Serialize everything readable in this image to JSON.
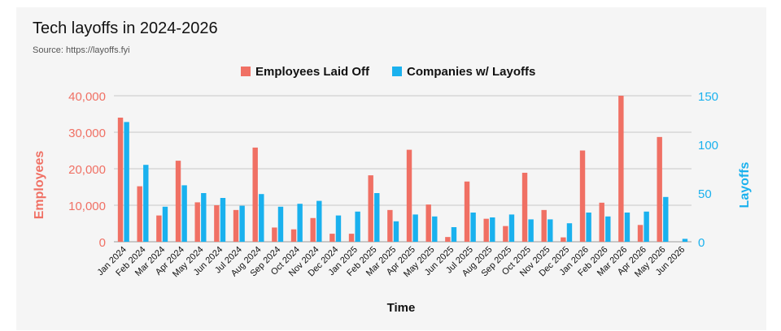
{
  "header": {
    "title": "Tech layoffs in 2024-2026",
    "source": "Source: https://layoffs.fyi"
  },
  "colors": {
    "employees": "#f07064",
    "companies": "#1ab1ee",
    "grid": "#c8c8c8",
    "background": "#f5f5f5"
  },
  "chart_data": {
    "type": "bar",
    "xlabel": "Time",
    "ylabel_left": "Employees",
    "ylabel_right": "Layoffs",
    "ylim_left": [
      0,
      40000
    ],
    "ylim_right": [
      0,
      150
    ],
    "yticks_left": [
      "0",
      "10,000",
      "20,000",
      "30,000",
      "40,000"
    ],
    "yticks_right": [
      "0",
      "50",
      "100",
      "150"
    ],
    "grid": true,
    "legend_position": "top-center",
    "categories": [
      "Jan 2024",
      "Feb 2024",
      "Mar 2024",
      "Apr 2024",
      "May 2024",
      "Jun 2024",
      "Jul 2024",
      "Aug 2024",
      "Sep 2024",
      "Oct 2024",
      "Nov 2024",
      "Dec 2024",
      "Jan 2025",
      "Feb 2025",
      "Mar 2025",
      "Apr 2025",
      "May 2025",
      "Jun 2025",
      "Jul 2025",
      "Aug 2025",
      "Sep 2025",
      "Oct 2025",
      "Nov 2025",
      "Dec 2025",
      "Jan 2026",
      "Feb 2026",
      "Mar 2026",
      "Apr 2026",
      "May 2026",
      "Jun 2026"
    ],
    "series": [
      {
        "name": "Employees Laid Off",
        "axis": "left",
        "values": [
          34000,
          15200,
          7200,
          22200,
          10800,
          10000,
          8700,
          25800,
          3900,
          3400,
          6500,
          2200,
          2200,
          18200,
          8700,
          25200,
          10200,
          1300,
          16500,
          6300,
          4300,
          18900,
          8700,
          1200,
          25000,
          10700,
          40000,
          4600,
          28700,
          0
        ]
      },
      {
        "name": "Companies w/ Layoffs",
        "axis": "right",
        "values": [
          123,
          79,
          36,
          58,
          50,
          45,
          37,
          49,
          36,
          39,
          42,
          27,
          31,
          50,
          21,
          28,
          26,
          15,
          30,
          25,
          28,
          23,
          23,
          19,
          30,
          26,
          30,
          31,
          46,
          3
        ]
      }
    ]
  }
}
